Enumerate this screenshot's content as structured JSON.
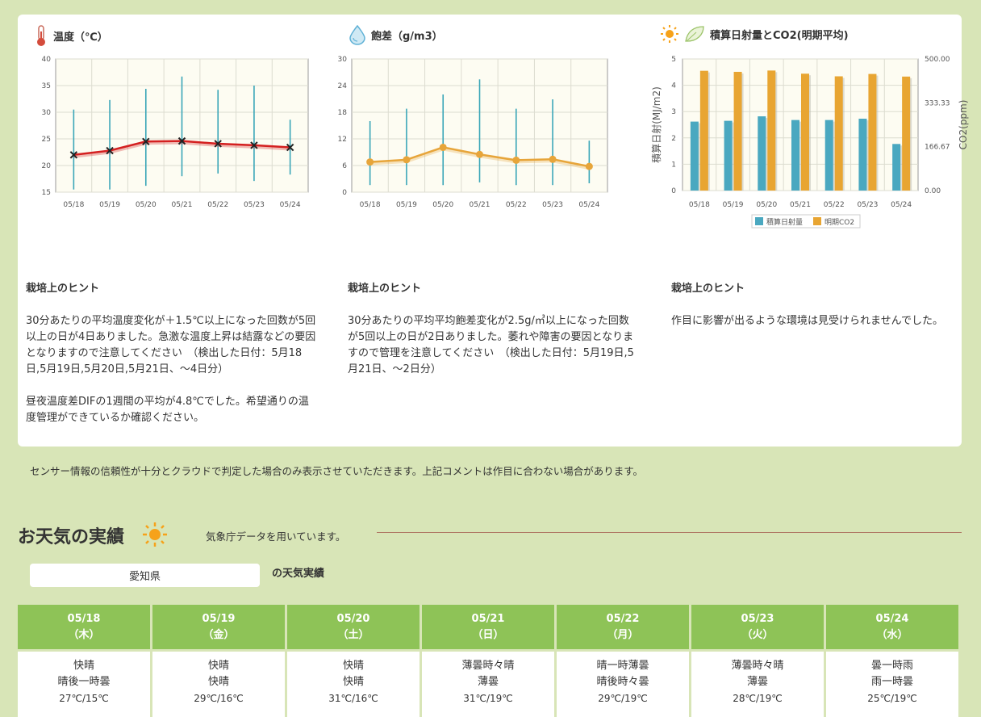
{
  "charts": {
    "temperature": {
      "title": "温度（℃）",
      "chart_data": {
        "type": "line",
        "categories": [
          "05/18",
          "05/19",
          "05/20",
          "05/21",
          "05/22",
          "05/23",
          "05/24"
        ],
        "ylim": [
          15,
          40
        ],
        "yticks": [
          15,
          20,
          25,
          30,
          35,
          40
        ],
        "series": [
          {
            "values": [
              22.0,
              22.8,
              24.5,
              24.6,
              24.1,
              23.8,
              23.4
            ]
          }
        ],
        "ranges": [
          [
            15.5,
            30.5
          ],
          [
            15.5,
            32.3
          ],
          [
            16.2,
            34.4
          ],
          [
            18.0,
            36.7
          ],
          [
            18.5,
            34.2
          ],
          [
            17.1,
            35.0
          ],
          [
            18.3,
            28.6
          ]
        ],
        "line_color": "#d42020",
        "range_color": "#3aa6b8",
        "grid": true
      }
    },
    "humidity_deficit": {
      "title": "飽差（g/m3）",
      "chart_data": {
        "type": "line",
        "categories": [
          "05/18",
          "05/19",
          "05/20",
          "05/21",
          "05/22",
          "05/23",
          "05/24"
        ],
        "ylim": [
          0,
          30
        ],
        "yticks": [
          0,
          6,
          12,
          18,
          24,
          30
        ],
        "series": [
          {
            "values": [
              6.8,
              7.3,
              10.1,
              8.5,
              7.2,
              7.4,
              5.8
            ]
          }
        ],
        "ranges": [
          [
            1.6,
            16.0
          ],
          [
            1.6,
            18.8
          ],
          [
            1.6,
            22.0
          ],
          [
            2.2,
            25.4
          ],
          [
            1.6,
            18.8
          ],
          [
            1.6,
            20.9
          ],
          [
            2.0,
            11.6
          ]
        ],
        "line_color": "#e7a53a",
        "range_color": "#3aa6b8",
        "grid": true
      }
    },
    "radiation_co2": {
      "title": "積算日射量とCO2(明期平均)",
      "chart_data": {
        "type": "bar",
        "categories": [
          "05/18",
          "05/19",
          "05/20",
          "05/21",
          "05/22",
          "05/23",
          "05/24"
        ],
        "ylabel": "積算日射(MJ/m2)",
        "y2label": "CO2(ppm)",
        "ylim": [
          0,
          5
        ],
        "yticks": [
          0,
          1,
          2,
          3,
          4,
          5
        ],
        "y2lim": [
          0,
          500
        ],
        "y2ticks": [
          "0.00",
          "166.67",
          "333.33",
          "500.00"
        ],
        "series": [
          {
            "name": "積算日射量",
            "values": [
              2.62,
              2.65,
              2.82,
              2.68,
              2.68,
              2.73,
              1.77
            ],
            "axis": "left",
            "color": "#4aa8c0"
          },
          {
            "name": "明期CO2",
            "values": [
              455,
              451,
              456,
              444,
              434,
              443,
              433
            ],
            "axis": "right",
            "color": "#e8a532"
          }
        ],
        "legend": "bottom",
        "grid": true
      }
    }
  },
  "hints": [
    {
      "title": "栽培上のヒント",
      "paragraphs": [
        "30分あたりの平均温度変化が＋1.5℃以上になった回数が5回以上の日が4日ありました。急激な温度上昇は結露などの要因となりますので注意してください　（検出した日付：5月18日,5月19日,5月20日,5月21日、～4日分）",
        "昼夜温度差DIFの1週間の平均が4.8℃でした。希望通りの温度管理ができているか確認ください。"
      ]
    },
    {
      "title": "栽培上のヒント",
      "paragraphs": [
        "30分あたりの平均平均飽差変化が2.5g/㎥以上になった回数が5回以上の日が2日ありました。萎れや障害の要因となりますので管理を注意してください　（検出した日付：5月19日,5月21日、～2日分）"
      ]
    },
    {
      "title": "栽培上のヒント",
      "paragraphs": [
        "作目に影響が出るような環境は見受けられませんでした。"
      ]
    }
  ],
  "note": "センサー情報の信頼性が十分とクラウドで判定した場合のみ表示させていただきます。上記コメントは作目に合わない場合があります。",
  "weather": {
    "title": "お天気の実績",
    "source": "気象庁データを用いています。",
    "prefecture": "愛知県",
    "prefecture_suffix": "の天気実績",
    "days": [
      {
        "date": "05/18",
        "dow": "（木）",
        "day": "快晴",
        "night": "晴後一時曇",
        "temps": "27℃/15℃"
      },
      {
        "date": "05/19",
        "dow": "（金）",
        "day": "快晴",
        "night": "快晴",
        "temps": "29℃/16℃"
      },
      {
        "date": "05/20",
        "dow": "（土）",
        "day": "快晴",
        "night": "快晴",
        "temps": "31℃/16℃"
      },
      {
        "date": "05/21",
        "dow": "（日）",
        "day": "薄曇時々晴",
        "night": "薄曇",
        "temps": "31℃/19℃"
      },
      {
        "date": "05/22",
        "dow": "（月）",
        "day": "晴一時薄曇",
        "night": "晴後時々曇",
        "temps": "29℃/19℃"
      },
      {
        "date": "05/23",
        "dow": "（火）",
        "day": "薄曇時々晴",
        "night": "薄曇",
        "temps": "28℃/19℃"
      },
      {
        "date": "05/24",
        "dow": "（水）",
        "day": "曇一時雨",
        "night": "雨一時曇",
        "temps": "25℃/19℃"
      }
    ]
  }
}
